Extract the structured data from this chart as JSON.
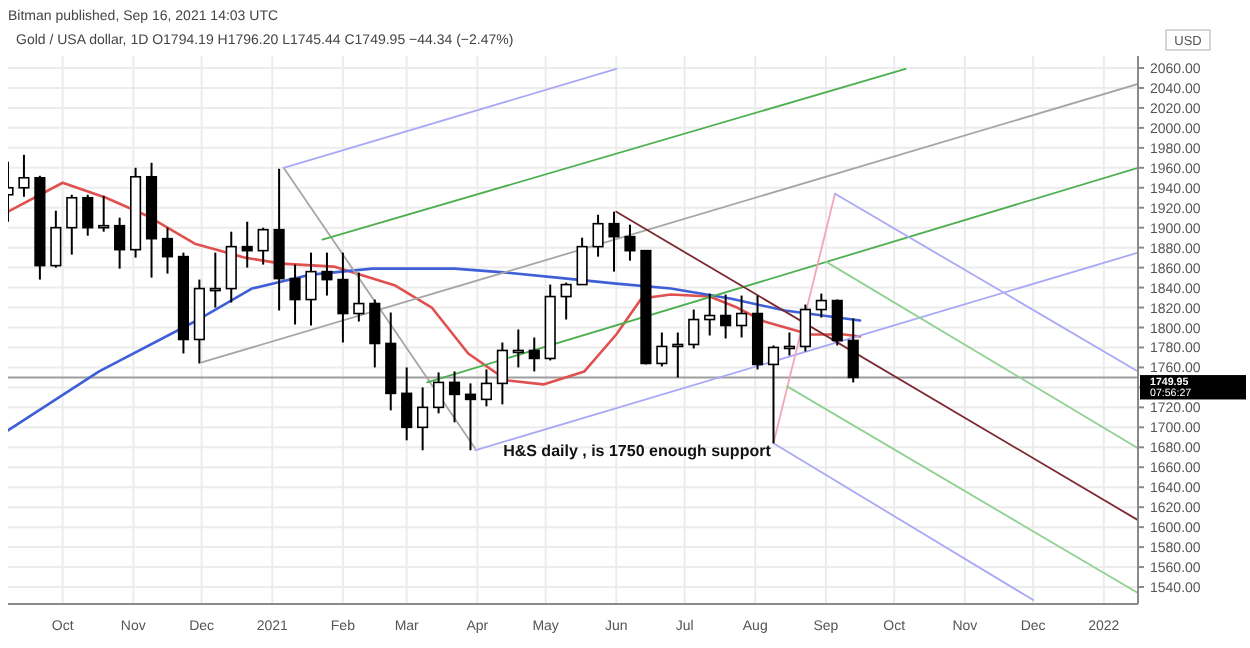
{
  "chart_data": {
    "type": "candlestick",
    "title": "Gold / USA dollar, 1D  O1794.19  H1796.20  L1745.44  C1749.95  −44.34 (−2.47%)",
    "subtitle": "Bitman published, Sep 16, 2021 14:03 UTC",
    "ylabel": "USD",
    "x": [
      "2020-09-07",
      "2020-09-14",
      "2020-09-21",
      "2020-09-28",
      "2020-10-05",
      "2020-10-12",
      "2020-10-19",
      "2020-10-26",
      "2020-11-02",
      "2020-11-09",
      "2020-11-16",
      "2020-11-23",
      "2020-11-30",
      "2020-12-07",
      "2020-12-14",
      "2020-12-21",
      "2020-12-28",
      "2021-01-04",
      "2021-01-11",
      "2021-01-18",
      "2021-01-25",
      "2021-02-01",
      "2021-02-08",
      "2021-02-15",
      "2021-02-22",
      "2021-03-01",
      "2021-03-08",
      "2021-03-15",
      "2021-03-22",
      "2021-03-29",
      "2021-04-05",
      "2021-04-12",
      "2021-04-19",
      "2021-04-26",
      "2021-05-03",
      "2021-05-10",
      "2021-05-17",
      "2021-05-24",
      "2021-05-31",
      "2021-06-07",
      "2021-06-14",
      "2021-06-21",
      "2021-06-28",
      "2021-07-05",
      "2021-07-12",
      "2021-07-19",
      "2021-07-26",
      "2021-08-02",
      "2021-08-09",
      "2021-08-16",
      "2021-08-23",
      "2021-08-30",
      "2021-09-06",
      "2021-09-13"
    ],
    "ohlc": [
      [
        1933,
        1966,
        1906,
        1940
      ],
      [
        1940,
        1973,
        1931,
        1950
      ],
      [
        1950,
        1952,
        1848,
        1862
      ],
      [
        1862,
        1917,
        1860,
        1900
      ],
      [
        1900,
        1933,
        1873,
        1930
      ],
      [
        1930,
        1933,
        1892,
        1900
      ],
      [
        1900,
        1932,
        1896,
        1902
      ],
      [
        1902,
        1910,
        1859,
        1878
      ],
      [
        1878,
        1960,
        1870,
        1951
      ],
      [
        1951,
        1965,
        1850,
        1889
      ],
      [
        1889,
        1900,
        1854,
        1871
      ],
      [
        1871,
        1875,
        1774,
        1788
      ],
      [
        1788,
        1848,
        1764,
        1839
      ],
      [
        1839,
        1875,
        1820,
        1839
      ],
      [
        1839,
        1896,
        1825,
        1881
      ],
      [
        1881,
        1906,
        1860,
        1877
      ],
      [
        1877,
        1900,
        1863,
        1898
      ],
      [
        1898,
        1959,
        1817,
        1849
      ],
      [
        1849,
        1863,
        1803,
        1828
      ],
      [
        1828,
        1875,
        1802,
        1856
      ],
      [
        1856,
        1875,
        1832,
        1848
      ],
      [
        1848,
        1875,
        1785,
        1814
      ],
      [
        1814,
        1855,
        1806,
        1824
      ],
      [
        1824,
        1828,
        1760,
        1784
      ],
      [
        1784,
        1815,
        1717,
        1734
      ],
      [
        1734,
        1760,
        1687,
        1700
      ],
      [
        1700,
        1740,
        1677,
        1720
      ],
      [
        1720,
        1755,
        1714,
        1745
      ],
      [
        1745,
        1756,
        1705,
        1733
      ],
      [
        1733,
        1744,
        1677,
        1728
      ],
      [
        1728,
        1758,
        1721,
        1744
      ],
      [
        1744,
        1785,
        1723,
        1777
      ],
      [
        1777,
        1798,
        1760,
        1777
      ],
      [
        1777,
        1790,
        1756,
        1769
      ],
      [
        1769,
        1843,
        1767,
        1831
      ],
      [
        1831,
        1845,
        1808,
        1843
      ],
      [
        1843,
        1890,
        1843,
        1881
      ],
      [
        1881,
        1913,
        1871,
        1904
      ],
      [
        1904,
        1916,
        1856,
        1891
      ],
      [
        1891,
        1903,
        1867,
        1877
      ],
      [
        1877,
        1877,
        1763,
        1764
      ],
      [
        1764,
        1795,
        1761,
        1781
      ],
      [
        1781,
        1795,
        1750,
        1783
      ],
      [
        1783,
        1818,
        1779,
        1808
      ],
      [
        1808,
        1834,
        1792,
        1812
      ],
      [
        1812,
        1833,
        1789,
        1802
      ],
      [
        1802,
        1832,
        1790,
        1814
      ],
      [
        1814,
        1832,
        1758,
        1763
      ],
      [
        1763,
        1782,
        1684,
        1780
      ],
      [
        1780,
        1795,
        1772,
        1781
      ],
      [
        1781,
        1823,
        1776,
        1818
      ],
      [
        1818,
        1834,
        1810,
        1827
      ],
      [
        1827,
        1828,
        1782,
        1787
      ],
      [
        1787,
        1809,
        1745,
        1750
      ]
    ],
    "series": [
      {
        "type": "line",
        "color": "#e0504e",
        "x": [
          "2020-09-07",
          "2020-10-01",
          "2020-10-20",
          "2020-11-07",
          "2020-11-28",
          "2020-12-20",
          "2021-01-05",
          "2021-01-28",
          "2021-02-24",
          "2021-03-12",
          "2021-03-28",
          "2021-04-14",
          "2021-04-30",
          "2021-05-18",
          "2021-06-01",
          "2021-06-12",
          "2021-06-25",
          "2021-07-12",
          "2021-07-24",
          "2021-08-05",
          "2021-08-25",
          "2021-09-09",
          "2021-09-16"
        ],
        "values": [
          1916,
          1945,
          1930,
          1912,
          1884,
          1870,
          1864,
          1861,
          1842,
          1820,
          1774,
          1747,
          1743,
          1756,
          1793,
          1829,
          1833,
          1831,
          1820,
          1806,
          1793,
          1793,
          1791
        ]
      },
      {
        "type": "line",
        "color": "#3f5fd6",
        "x": [
          "2020-09-07",
          "2020-10-17",
          "2020-11-28",
          "2020-12-23",
          "2021-01-18",
          "2021-02-14",
          "2021-03-22",
          "2021-04-14",
          "2021-05-06",
          "2021-06-01",
          "2021-06-25",
          "2021-07-21",
          "2021-08-14",
          "2021-09-16"
        ],
        "values": [
          1697,
          1756,
          1806,
          1839,
          1853,
          1859,
          1859,
          1855,
          1850,
          1844,
          1839,
          1829,
          1817,
          1807
        ]
      },
      {
        "type": "line",
        "color": "#a6a6a6",
        "x": [
          "2020-12-01",
          "2022-01-16"
        ],
        "values": [
          1765,
          2044
        ]
      },
      {
        "type": "line",
        "color": "#a6a6a6",
        "x": [
          "2021-01-06",
          "2021-03-31"
        ],
        "values": [
          1960,
          1679
        ]
      },
      {
        "type": "line",
        "color": "#a9a9f5",
        "x": [
          "2021-01-06",
          "2021-06-01"
        ],
        "values": [
          1960,
          2059
        ]
      },
      {
        "type": "line",
        "color": "#a9a9f5",
        "x": [
          "2021-03-31",
          "2022-01-16"
        ],
        "values": [
          1677,
          1875
        ]
      },
      {
        "type": "line",
        "color": "#4caf50",
        "x": [
          "2021-01-23",
          "2021-10-06"
        ],
        "values": [
          1888,
          2059
        ]
      },
      {
        "type": "line",
        "color": "#4caf50",
        "x": [
          "2021-03-10",
          "2022-01-16"
        ],
        "values": [
          1745,
          1960
        ]
      },
      {
        "type": "line",
        "color": "#7b2a32",
        "x": [
          "2021-06-01",
          "2022-01-16"
        ],
        "values": [
          1916,
          1607
        ]
      },
      {
        "type": "line",
        "color": "#f4a6b5",
        "x": [
          "2021-08-09",
          "2021-09-05"
        ],
        "values": [
          1684,
          1934
        ]
      },
      {
        "type": "line",
        "color": "#a9a9f5",
        "x": [
          "2021-09-05",
          "2022-01-16"
        ],
        "values": [
          1934,
          1756
        ]
      },
      {
        "type": "line",
        "color": "#a9a9f5",
        "x": [
          "2021-08-09",
          "2021-12-01"
        ],
        "values": [
          1684,
          1527
        ]
      },
      {
        "type": "line",
        "color": "#8fd18f",
        "x": [
          "2021-09-01",
          "2022-01-16"
        ],
        "values": [
          1866,
          1679
        ]
      },
      {
        "type": "line",
        "color": "#8fd18f",
        "x": [
          "2021-08-15",
          "2022-01-16"
        ],
        "values": [
          1741,
          1534
        ]
      }
    ],
    "xlim": [
      "2020-09-07",
      "2022-01-16"
    ],
    "xticks": [
      {
        "value": "2020-10-01",
        "label": "Oct"
      },
      {
        "value": "2020-11-01",
        "label": "Nov"
      },
      {
        "value": "2020-12-01",
        "label": "Dec"
      },
      {
        "value": "2021-01-01",
        "label": "2021"
      },
      {
        "value": "2021-02-01",
        "label": "Feb"
      },
      {
        "value": "2021-03-01",
        "label": "Mar"
      },
      {
        "value": "2021-04-01",
        "label": "Apr"
      },
      {
        "value": "2021-05-01",
        "label": "May"
      },
      {
        "value": "2021-06-01",
        "label": "Jun"
      },
      {
        "value": "2021-07-01",
        "label": "Jul"
      },
      {
        "value": "2021-08-01",
        "label": "Aug"
      },
      {
        "value": "2021-09-01",
        "label": "Sep"
      },
      {
        "value": "2021-10-01",
        "label": "Oct"
      },
      {
        "value": "2021-11-01",
        "label": "Nov"
      },
      {
        "value": "2021-12-01",
        "label": "Dec"
      },
      {
        "value": "2022-01-01",
        "label": "2022"
      }
    ],
    "ylim": [
      1523,
      2072
    ],
    "yticks": [
      {
        "value": 1540,
        "label": "1540.00"
      },
      {
        "value": 1560,
        "label": "1560.00"
      },
      {
        "value": 1580,
        "label": "1580.00"
      },
      {
        "value": 1600,
        "label": "1600.00"
      },
      {
        "value": 1620,
        "label": "1620.00"
      },
      {
        "value": 1640,
        "label": "1640.00"
      },
      {
        "value": 1660,
        "label": "1660.00"
      },
      {
        "value": 1680,
        "label": "1680.00"
      },
      {
        "value": 1700,
        "label": "1700.00"
      },
      {
        "value": 1720,
        "label": "1720.00"
      },
      {
        "value": 1740,
        "label": null
      },
      {
        "value": 1760,
        "label": "1760.00"
      },
      {
        "value": 1780,
        "label": "1780.00"
      },
      {
        "value": 1800,
        "label": "1800.00"
      },
      {
        "value": 1820,
        "label": "1820.00"
      },
      {
        "value": 1840,
        "label": "1840.00"
      },
      {
        "value": 1860,
        "label": "1860.00"
      },
      {
        "value": 1880,
        "label": "1880.00"
      },
      {
        "value": 1900,
        "label": "1900.00"
      },
      {
        "value": 1920,
        "label": "1920.00"
      },
      {
        "value": 1940,
        "label": "1940.00"
      },
      {
        "value": 1960,
        "label": "1960.00"
      },
      {
        "value": 1980,
        "label": "1980.00"
      },
      {
        "value": 2000,
        "label": "2000.00"
      },
      {
        "value": 2020,
        "label": "2020.00"
      },
      {
        "value": 2040,
        "label": "2040.00"
      },
      {
        "value": 2060,
        "label": "2060.00"
      }
    ],
    "ref_lines": [
      {
        "axis": "y",
        "value": 1749.95,
        "label": "1749.95\n07:56:27",
        "color": "#9e9e9e"
      }
    ],
    "annotations": [
      "H&S daily , is 1750 enough support"
    ],
    "grid": true
  }
}
